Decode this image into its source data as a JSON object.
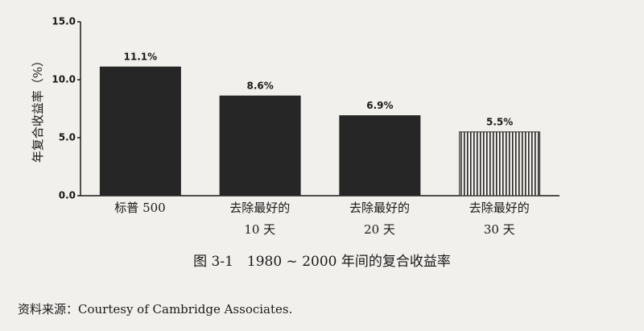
{
  "chart_data": {
    "type": "bar",
    "y_label": "年复合收益率（%）",
    "categories": [
      "标普 500",
      "去除最好的\n10 天",
      "去除最好的\n20 天",
      "去除最好的\n30 天"
    ],
    "values": [
      11.1,
      8.6,
      6.9,
      5.5
    ],
    "value_labels": [
      "11.1%",
      "8.6%",
      "6.9%",
      "5.5%"
    ],
    "color": "#262626",
    "patterns": [
      "solid",
      "solid",
      "solid",
      "vertical-lines"
    ],
    "ylim": [
      0,
      15
    ],
    "yticks": [
      {
        "value": 0,
        "label": "0.0"
      },
      {
        "value": 5,
        "label": "5.0"
      },
      {
        "value": 10,
        "label": "10.0"
      },
      {
        "value": 15,
        "label": "15.0"
      }
    ],
    "caption": "图 3-1　1980 ~ 2000 年间的复合收益率",
    "source": "资料来源：Courtesy of Cambridge Associates."
  }
}
